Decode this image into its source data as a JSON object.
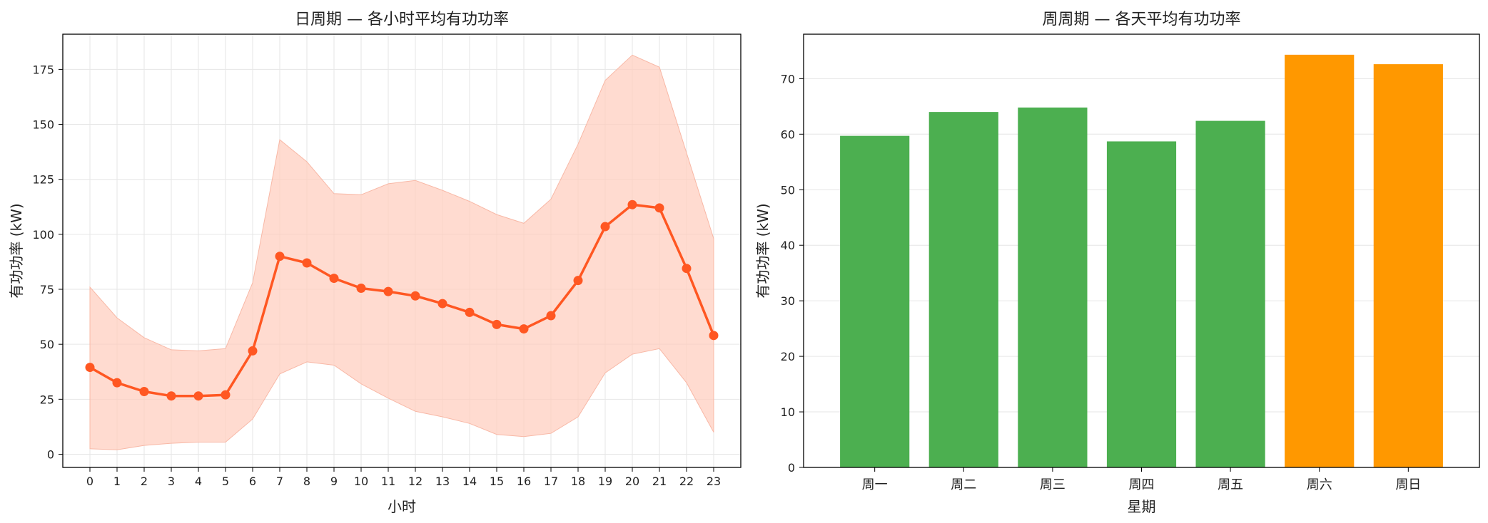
{
  "chart_data": [
    {
      "type": "line",
      "title": "日周期 — 各小时平均有功功率",
      "xlabel": "小时",
      "ylabel": "有功功率 (kW)",
      "x": [
        0,
        1,
        2,
        3,
        4,
        5,
        6,
        7,
        8,
        9,
        10,
        11,
        12,
        13,
        14,
        15,
        16,
        17,
        18,
        19,
        20,
        21,
        22,
        23
      ],
      "xlim": [
        -1,
        24
      ],
      "ylim": [
        -6,
        191
      ],
      "yticks": [
        0,
        25,
        50,
        75,
        100,
        125,
        150,
        175
      ],
      "grid": true,
      "series": [
        {
          "values": [
            39.5,
            32.5,
            28.5,
            26.5,
            26.5,
            27,
            47,
            90,
            87,
            80,
            75.5,
            74,
            72,
            68.5,
            64.5,
            59,
            57,
            63,
            79,
            103.5,
            113.5,
            112,
            84.5,
            54
          ],
          "color": "#ff5722"
        }
      ],
      "band": {
        "upper": [
          76,
          62,
          53,
          47.5,
          47,
          48,
          78,
          143,
          133,
          118.5,
          118,
          123,
          124.5,
          120,
          115,
          109,
          105,
          116,
          141,
          170,
          181.5,
          176,
          137,
          98
        ],
        "lower": [
          2.5,
          2,
          4,
          5,
          5.5,
          5.5,
          16,
          36.5,
          42,
          40.5,
          32,
          25.5,
          19.5,
          17,
          14,
          9,
          8,
          9.5,
          17,
          37,
          45.5,
          48,
          32.5,
          10
        ],
        "color": "#ffccbc"
      }
    },
    {
      "type": "bar",
      "title": "周周期 — 各天平均有功功率",
      "xlabel": "星期",
      "ylabel": "有功功率 (kW)",
      "categories": [
        "周一",
        "周二",
        "周三",
        "周四",
        "周五",
        "周六",
        "周日"
      ],
      "values": [
        59.7,
        64,
        64.8,
        58.7,
        62.4,
        74.3,
        72.6
      ],
      "ylim": [
        0,
        78
      ],
      "yticks": [
        0,
        10,
        20,
        30,
        40,
        50,
        60,
        70
      ],
      "grid": true,
      "colors": [
        "#4caf50",
        "#4caf50",
        "#4caf50",
        "#4caf50",
        "#4caf50",
        "#ff9800",
        "#ff9800"
      ]
    }
  ]
}
